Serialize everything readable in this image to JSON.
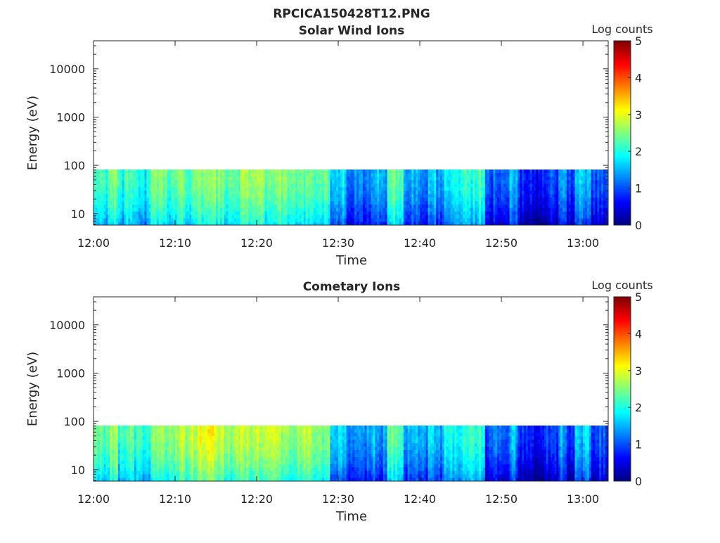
{
  "figure_title": "RPCICA150428T12.PNG",
  "colors": {
    "axis": "#262626",
    "background": "#ffffff"
  },
  "chart_data": [
    {
      "type": "heatmap",
      "title": "Solar Wind Ions",
      "xlabel": "Time",
      "ylabel": "Energy (eV)",
      "colorbar_label": "Log counts",
      "colormap": "jet",
      "clim": [
        0,
        5
      ],
      "colorbar_ticks": [
        "0",
        "1",
        "2",
        "3",
        "4",
        "5"
      ],
      "x_range_minutes": [
        0,
        63.1
      ],
      "x_ticks": [
        "12:00",
        "12:10",
        "12:20",
        "12:30",
        "12:40",
        "12:50",
        "13:00"
      ],
      "y_scale": "log",
      "y_range": [
        5.8,
        38000
      ],
      "y_ticks": [
        "10",
        "100",
        "1000",
        "10000"
      ],
      "data_energy_range": [
        5.8,
        82
      ],
      "minute_mean_log_counts": [
        2.3,
        2.1,
        2.4,
        1.9,
        2.2,
        2.0,
        1.8,
        2.4,
        2.3,
        2.1,
        2.4,
        2.2,
        2.5,
        2.4,
        2.6,
        2.5,
        2.2,
        2.3,
        2.5,
        2.4,
        2.5,
        2.3,
        2.5,
        2.4,
        2.2,
        2.3,
        2.4,
        2.1,
        2.3,
        1.6,
        1.7,
        1.1,
        1.3,
        1.2,
        1.4,
        1.2,
        2.4,
        2.2,
        1.3,
        1.4,
        1.2,
        1.6,
        1.3,
        1.8,
        1.9,
        2.1,
        2.0,
        2.2,
        0.9,
        1.1,
        1.0,
        1.5,
        0.8,
        0.7,
        0.6,
        0.8,
        0.9,
        1.4,
        0.8,
        1.5,
        1.6,
        0.9,
        1.0,
        1.0
      ]
    },
    {
      "type": "heatmap",
      "title": "Cometary Ions",
      "xlabel": "Time",
      "ylabel": "Energy (eV)",
      "colorbar_label": "Log counts",
      "colormap": "jet",
      "clim": [
        0,
        5
      ],
      "colorbar_ticks": [
        "0",
        "1",
        "2",
        "3",
        "4",
        "5"
      ],
      "x_range_minutes": [
        0,
        63.1
      ],
      "x_ticks": [
        "12:00",
        "12:10",
        "12:20",
        "12:30",
        "12:40",
        "12:50",
        "13:00"
      ],
      "y_scale": "log",
      "y_range": [
        5.8,
        38000
      ],
      "y_ticks": [
        "10",
        "100",
        "1000",
        "10000"
      ],
      "data_energy_range": [
        5.8,
        82
      ],
      "minute_mean_log_counts": [
        2.4,
        2.2,
        2.6,
        2.0,
        2.3,
        2.1,
        1.9,
        2.6,
        2.5,
        2.4,
        2.7,
        2.6,
        2.8,
        2.9,
        3.0,
        2.8,
        2.6,
        2.8,
        2.8,
        2.7,
        2.8,
        2.7,
        2.8,
        2.7,
        2.5,
        2.6,
        2.6,
        2.3,
        2.4,
        1.7,
        1.7,
        1.2,
        1.4,
        1.3,
        1.5,
        1.3,
        2.3,
        2.2,
        1.4,
        1.5,
        1.3,
        1.7,
        1.4,
        1.8,
        1.9,
        2.0,
        2.0,
        2.1,
        0.9,
        1.1,
        1.0,
        1.5,
        0.8,
        0.7,
        0.6,
        0.8,
        0.9,
        1.4,
        0.8,
        1.5,
        1.6,
        0.9,
        1.0,
        1.0
      ]
    }
  ]
}
